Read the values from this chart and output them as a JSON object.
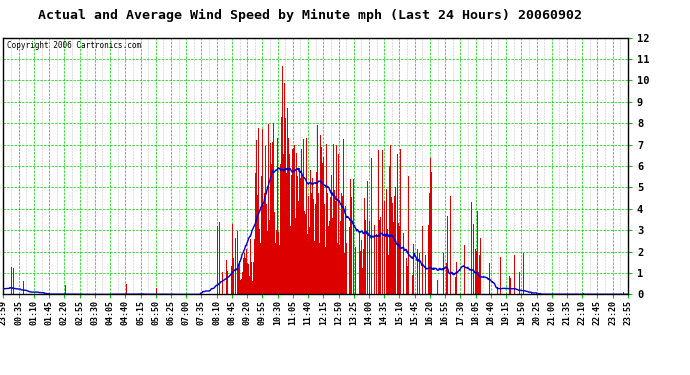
{
  "title": "Actual and Average Wind Speed by Minute mph (Last 24 Hours) 20060902",
  "copyright": "Copyright 2006 Cartronics.com",
  "ylabel_right_values": [
    0.0,
    1.0,
    2.0,
    3.0,
    4.0,
    5.0,
    6.0,
    7.0,
    8.0,
    9.0,
    10.0,
    11.0,
    12.0
  ],
  "ylim": [
    0.0,
    12.0
  ],
  "bar_color": "#dd0000",
  "line_color": "#0000cc",
  "grid_color_major": "#00cc00",
  "grid_color_minor": "#aaaaaa",
  "background_color": "#ffffff",
  "outer_background": "#ffffff",
  "title_color": "#000000",
  "copyright_color": "#000000",
  "border_color": "#000000",
  "x_tick_labels": [
    "23:59",
    "00:35",
    "01:10",
    "01:45",
    "02:20",
    "02:55",
    "03:30",
    "04:05",
    "04:40",
    "05:15",
    "05:50",
    "06:25",
    "07:00",
    "07:35",
    "08:10",
    "08:45",
    "09:20",
    "09:55",
    "10:30",
    "11:05",
    "11:40",
    "12:15",
    "12:50",
    "13:25",
    "14:00",
    "14:35",
    "15:10",
    "15:45",
    "16:20",
    "16:55",
    "17:30",
    "18:05",
    "18:40",
    "19:15",
    "19:50",
    "20:25",
    "21:00",
    "21:35",
    "22:10",
    "22:45",
    "23:20",
    "23:55"
  ],
  "num_minutes": 1440,
  "n_major_xticks": 42,
  "n_minor_xticks_per_major": 2
}
